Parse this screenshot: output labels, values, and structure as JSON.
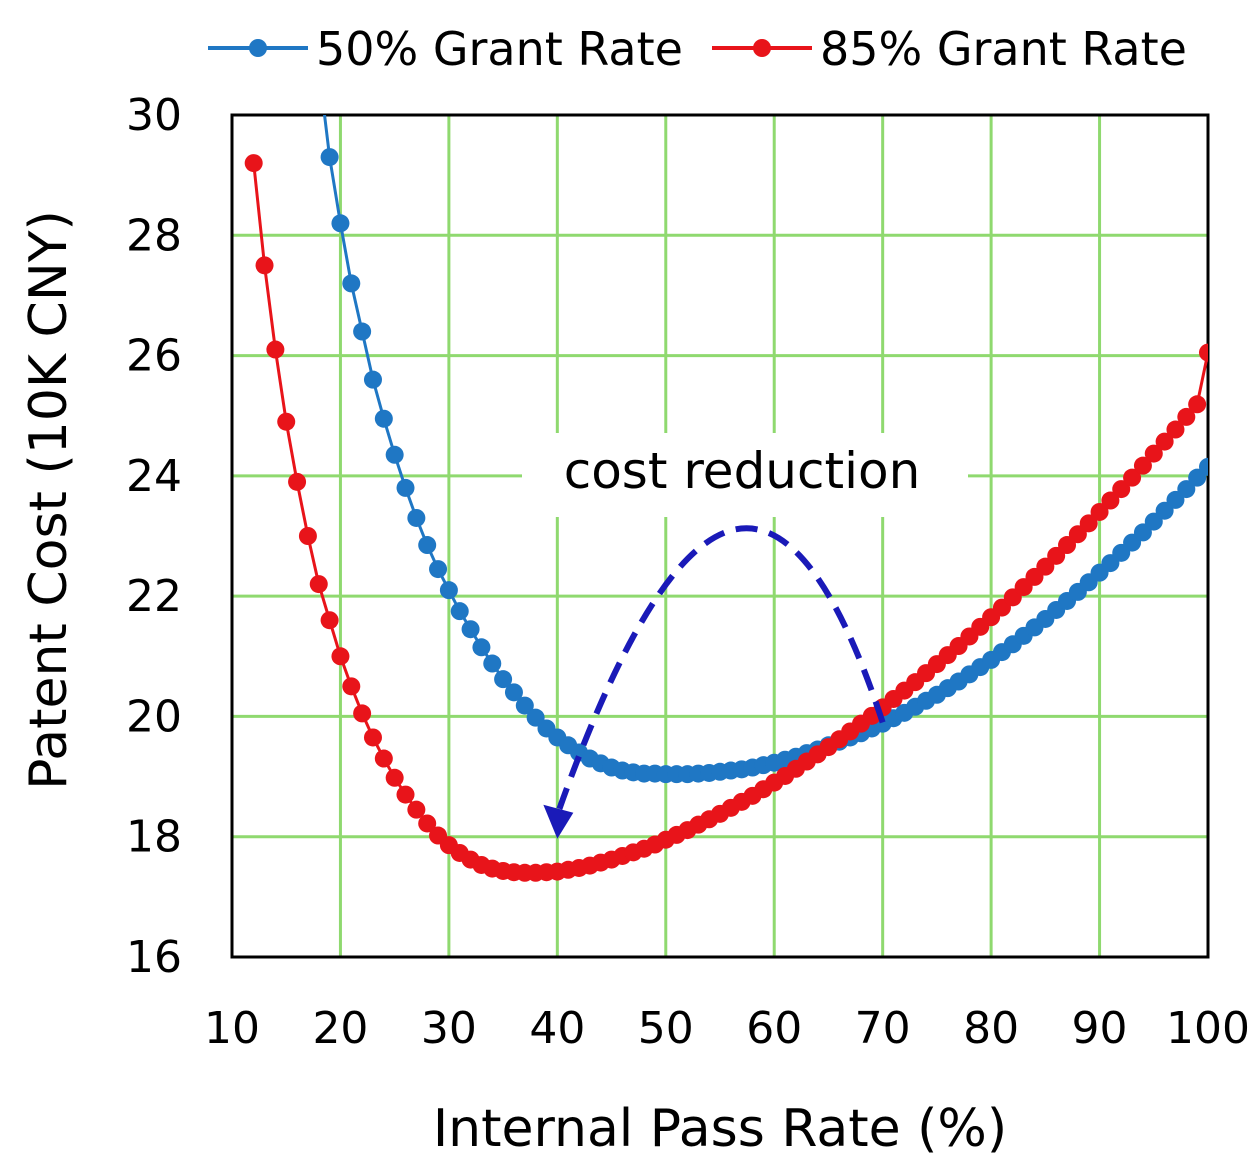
{
  "chart_data": {
    "type": "line",
    "xlabel": "Internal Pass Rate (%)",
    "ylabel": "Patent Cost (10K CNY)",
    "xlim": [
      10,
      100
    ],
    "ylim": [
      16,
      30
    ],
    "xticks": [
      10,
      20,
      30,
      40,
      50,
      60,
      70,
      80,
      90,
      100
    ],
    "yticks": [
      16,
      18,
      20,
      22,
      24,
      26,
      28,
      30
    ],
    "grid": true,
    "grid_color": "#8fd96f",
    "legend_position": "top",
    "annotation": {
      "text": "cost reduction",
      "arrow_from": [
        70,
        19.9
      ],
      "arrow_peak": [
        56,
        23.0
      ],
      "arrow_to": [
        40,
        18.0
      ],
      "color": "#1a1ab8"
    },
    "series": [
      {
        "name": "50% Grant Rate",
        "color": "#1f77c4",
        "x": [
          18,
          19,
          20,
          21,
          22,
          23,
          24,
          25,
          26,
          27,
          28,
          29,
          30,
          31,
          32,
          33,
          34,
          35,
          36,
          37,
          38,
          39,
          40,
          41,
          42,
          43,
          44,
          45,
          46,
          47,
          48,
          49,
          50,
          51,
          52,
          53,
          54,
          55,
          56,
          57,
          58,
          59,
          60,
          61,
          62,
          63,
          64,
          65,
          66,
          67,
          68,
          69,
          70,
          71,
          72,
          73,
          74,
          75,
          76,
          77,
          78,
          79,
          80,
          81,
          82,
          83,
          84,
          85,
          86,
          87,
          88,
          89,
          90,
          91,
          92,
          93,
          94,
          95,
          96,
          97,
          98,
          99,
          100
        ],
        "y": [
          30.8,
          29.3,
          28.2,
          27.2,
          26.4,
          25.6,
          24.95,
          24.35,
          23.8,
          23.3,
          22.85,
          22.45,
          22.1,
          21.75,
          21.45,
          21.15,
          20.88,
          20.62,
          20.4,
          20.18,
          19.98,
          19.8,
          19.65,
          19.52,
          19.4,
          19.3,
          19.22,
          19.15,
          19.1,
          19.07,
          19.05,
          19.05,
          19.04,
          19.04,
          19.04,
          19.05,
          19.06,
          19.08,
          19.1,
          19.12,
          19.15,
          19.19,
          19.23,
          19.28,
          19.33,
          19.39,
          19.45,
          19.52,
          19.58,
          19.65,
          19.72,
          19.8,
          19.88,
          19.97,
          20.06,
          20.16,
          20.26,
          20.36,
          20.47,
          20.58,
          20.7,
          20.82,
          20.94,
          21.07,
          21.2,
          21.34,
          21.48,
          21.62,
          21.77,
          21.92,
          22.07,
          22.23,
          22.39,
          22.55,
          22.72,
          22.89,
          23.06,
          23.24,
          23.42,
          23.6,
          23.78,
          23.97,
          24.15
        ]
      },
      {
        "name": "85% Grant Rate",
        "color": "#e8141a",
        "x": [
          12,
          13,
          14,
          15,
          16,
          17,
          18,
          19,
          20,
          21,
          22,
          23,
          24,
          25,
          26,
          27,
          28,
          29,
          30,
          31,
          32,
          33,
          34,
          35,
          36,
          37,
          38,
          39,
          40,
          41,
          42,
          43,
          44,
          45,
          46,
          47,
          48,
          49,
          50,
          51,
          52,
          53,
          54,
          55,
          56,
          57,
          58,
          59,
          60,
          61,
          62,
          63,
          64,
          65,
          66,
          67,
          68,
          69,
          70,
          71,
          72,
          73,
          74,
          75,
          76,
          77,
          78,
          79,
          80,
          81,
          82,
          83,
          84,
          85,
          86,
          87,
          88,
          89,
          90,
          91,
          92,
          93,
          94,
          95,
          96,
          97,
          98,
          99,
          100
        ],
        "y": [
          29.2,
          27.5,
          26.1,
          24.9,
          23.9,
          23.0,
          22.2,
          21.6,
          21.0,
          20.5,
          20.05,
          19.65,
          19.3,
          18.98,
          18.7,
          18.45,
          18.22,
          18.02,
          17.86,
          17.73,
          17.62,
          17.53,
          17.47,
          17.43,
          17.41,
          17.4,
          17.4,
          17.41,
          17.42,
          17.45,
          17.48,
          17.52,
          17.57,
          17.62,
          17.68,
          17.74,
          17.8,
          17.87,
          17.95,
          18.03,
          18.11,
          18.2,
          18.29,
          18.38,
          18.48,
          18.58,
          18.68,
          18.79,
          18.9,
          19.01,
          19.13,
          19.25,
          19.37,
          19.49,
          19.62,
          19.75,
          19.88,
          20.01,
          20.15,
          20.29,
          20.43,
          20.57,
          20.72,
          20.87,
          21.02,
          21.17,
          21.33,
          21.49,
          21.65,
          21.81,
          21.98,
          22.15,
          22.32,
          22.49,
          22.67,
          22.85,
          23.03,
          23.21,
          23.4,
          23.59,
          23.78,
          23.97,
          24.17,
          24.37,
          24.57,
          24.77,
          24.98,
          25.19,
          26.05
        ]
      }
    ]
  }
}
